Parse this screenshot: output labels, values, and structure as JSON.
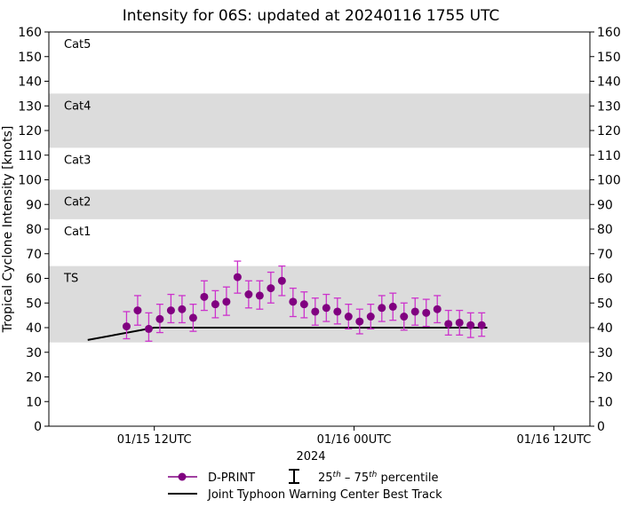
{
  "chart_data": {
    "type": "scatter",
    "title": "Intensity for 06S: updated at 20240116 1755 UTC",
    "ylabel": "Tropical Cyclone Intensity [knots]",
    "xlabel": "2024",
    "ylim": [
      0,
      160
    ],
    "yticks": [
      0,
      10,
      20,
      30,
      40,
      50,
      60,
      70,
      80,
      90,
      100,
      110,
      120,
      130,
      140,
      150,
      160
    ],
    "x_unit": "hours since 01/15 00UTC",
    "xlim": [
      -3.5,
      45.25
    ],
    "xticks": [
      {
        "x": 6,
        "label": "01/15 12UTC"
      },
      {
        "x": 24,
        "label": "01/16 00UTC"
      },
      {
        "x": 42,
        "label": "01/16 12UTC"
      }
    ],
    "categories": [
      {
        "label": "TS",
        "min": 34,
        "max": 65,
        "shaded": true
      },
      {
        "label": "Cat1",
        "min": 65,
        "max": 84,
        "shaded": false
      },
      {
        "label": "Cat2",
        "min": 84,
        "max": 96,
        "shaded": true
      },
      {
        "label": "Cat3",
        "min": 96,
        "max": 113,
        "shaded": false
      },
      {
        "label": "Cat4",
        "min": 113,
        "max": 135,
        "shaded": true
      },
      {
        "label": "Cat5",
        "min": 137,
        "max": 160,
        "shaded": false
      }
    ],
    "series": [
      {
        "name": "D-PRINT",
        "color": "#800080",
        "errorbar_color": "#cc33cc",
        "points": [
          {
            "x": 3.5,
            "y": 40.5,
            "low": 35.5,
            "high": 46.5
          },
          {
            "x": 4.5,
            "y": 47,
            "low": 41,
            "high": 53
          },
          {
            "x": 5.5,
            "y": 39.5,
            "low": 34.5,
            "high": 46
          },
          {
            "x": 6.5,
            "y": 43.5,
            "low": 38,
            "high": 49.5
          },
          {
            "x": 7.5,
            "y": 47,
            "low": 42,
            "high": 53.5
          },
          {
            "x": 8.5,
            "y": 47.5,
            "low": 42,
            "high": 53
          },
          {
            "x": 9.5,
            "y": 44,
            "low": 38.5,
            "high": 49.5
          },
          {
            "x": 10.5,
            "y": 52.5,
            "low": 47,
            "high": 59
          },
          {
            "x": 11.5,
            "y": 49.5,
            "low": 44,
            "high": 55
          },
          {
            "x": 12.5,
            "y": 50.5,
            "low": 45,
            "high": 56.5
          },
          {
            "x": 13.5,
            "y": 60.5,
            "low": 54,
            "high": 67
          },
          {
            "x": 14.5,
            "y": 53.5,
            "low": 48,
            "high": 59
          },
          {
            "x": 15.5,
            "y": 53,
            "low": 47.5,
            "high": 59
          },
          {
            "x": 16.5,
            "y": 56,
            "low": 50,
            "high": 62.5
          },
          {
            "x": 17.5,
            "y": 59,
            "low": 53,
            "high": 65
          },
          {
            "x": 18.5,
            "y": 50.5,
            "low": 44.5,
            "high": 56
          },
          {
            "x": 19.5,
            "y": 49.5,
            "low": 44,
            "high": 54.5
          },
          {
            "x": 20.5,
            "y": 46.5,
            "low": 41,
            "high": 52
          },
          {
            "x": 21.5,
            "y": 48,
            "low": 42.5,
            "high": 53.5
          },
          {
            "x": 22.5,
            "y": 46.5,
            "low": 41.5,
            "high": 52
          },
          {
            "x": 23.5,
            "y": 44.5,
            "low": 39.5,
            "high": 49.5
          },
          {
            "x": 24.5,
            "y": 42.5,
            "low": 37.5,
            "high": 47.5
          },
          {
            "x": 25.5,
            "y": 44.5,
            "low": 39.5,
            "high": 49.5
          },
          {
            "x": 26.5,
            "y": 48,
            "low": 42.5,
            "high": 53
          },
          {
            "x": 27.5,
            "y": 48.5,
            "low": 43,
            "high": 54
          },
          {
            "x": 28.5,
            "y": 44.5,
            "low": 39,
            "high": 50
          },
          {
            "x": 29.5,
            "y": 46.5,
            "low": 41,
            "high": 52
          },
          {
            "x": 30.5,
            "y": 46,
            "low": 40.5,
            "high": 51.5
          },
          {
            "x": 31.5,
            "y": 47.5,
            "low": 42,
            "high": 53
          },
          {
            "x": 32.5,
            "y": 41.5,
            "low": 37,
            "high": 47
          },
          {
            "x": 33.5,
            "y": 42,
            "low": 37,
            "high": 47
          },
          {
            "x": 34.5,
            "y": 41,
            "low": 36,
            "high": 46
          },
          {
            "x": 35.5,
            "y": 41,
            "low": 36.5,
            "high": 46
          }
        ]
      },
      {
        "name": "Joint Typhoon Warning Center Best Track",
        "color": "#000000",
        "points": [
          {
            "x": 0,
            "y": 35
          },
          {
            "x": 6,
            "y": 40
          },
          {
            "x": 36,
            "y": 40
          }
        ]
      }
    ],
    "legend": {
      "placement": "bottom",
      "items": [
        "D-PRINT",
        "25th – 75th percentile",
        "Joint Typhoon Warning Center Best Track"
      ]
    },
    "colors": {
      "band": "#dcdcdc",
      "marker": "#800080",
      "errorbar": "#cc33cc",
      "best_track": "#000000"
    }
  }
}
